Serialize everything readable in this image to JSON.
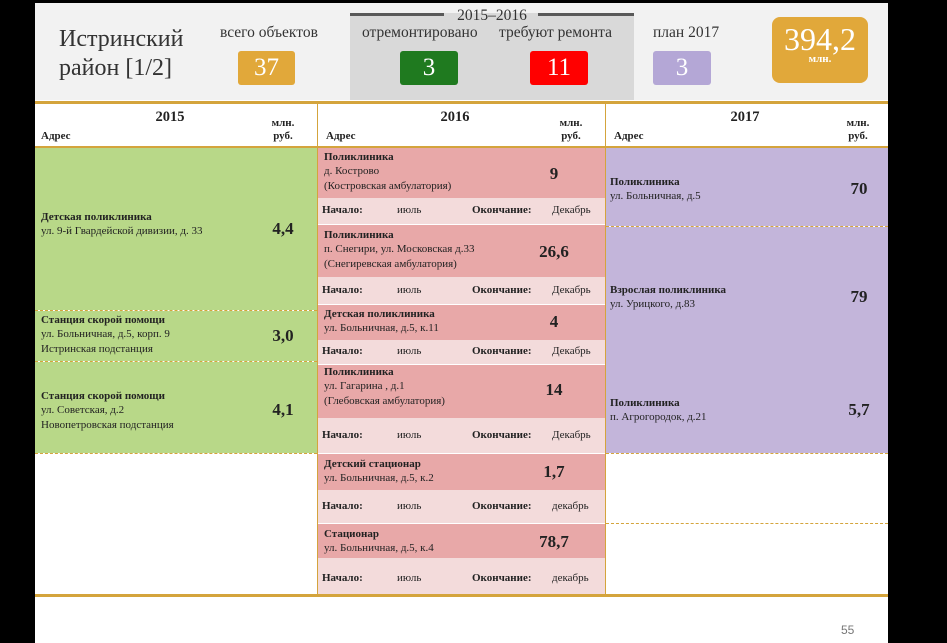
{
  "header": {
    "title_line1": "Истринский",
    "title_line2": "район [1/2]",
    "total_objects_label": "всего объектов",
    "total_objects": "37",
    "period": "2015–2016",
    "repaired_label": "отремонтировано",
    "repaired": "3",
    "need_repair_label": "требуют ремонта",
    "need_repair": "11",
    "plan_label": "план 2017",
    "plan": "3",
    "total_sum": "394,2",
    "total_sum_unit": "млн."
  },
  "colors": {
    "orange": "#e1a83a",
    "green_box": "#1f7a1f",
    "red_box": "#ff0000",
    "purple_box": "#b4a7d6",
    "green_cell": "#b8d888",
    "red_cell": "#e8a8a8",
    "pink_cell": "#f3dbdb",
    "purple_cell": "#c3b5da"
  },
  "table": {
    "columns": [
      {
        "year": "2015",
        "address_label": "Адрес",
        "unit_line1": "млн.",
        "unit_line2": "руб."
      },
      {
        "year": "2016",
        "address_label": "Адрес",
        "unit_line1": "млн.",
        "unit_line2": "руб."
      },
      {
        "year": "2017",
        "address_label": "Адрес",
        "unit_line1": "млн.",
        "unit_line2": "руб."
      }
    ],
    "start_label": "Начало:",
    "end_label": "Окончание:",
    "items_2015": [
      {
        "name": "Детская поликлиника",
        "line1": "ул. 9-й Гвардейской дивизии, д. 33",
        "value": "4,4"
      },
      {
        "name": "Станция скорой помощи",
        "line1": "ул. Больничная, д.5, корп. 9",
        "line2": "Истринская подстанция",
        "value": "3,0"
      },
      {
        "name": "Станция скорой помощи",
        "line1": "ул. Советская, д.2",
        "line2": "Новопетровская подстанция",
        "value": "4,1"
      }
    ],
    "items_2016": [
      {
        "name": "Поликлиника",
        "line1": "д. Кострово",
        "line2": "(Костровская амбулатория)",
        "value": "9",
        "start": "июль",
        "end": "Декабрь"
      },
      {
        "name": "Поликлиника",
        "line1": "п. Снегири, ул. Московская д.33",
        "line2": "(Снегиревская амбулатория)",
        "value": "26,6",
        "start": "июль",
        "end": "Декабрь"
      },
      {
        "name": "Детская поликлиника",
        "line1": "ул. Больничная, д.5, к.11",
        "value": "4",
        "start": "июль",
        "end": "Декабрь"
      },
      {
        "name": "Поликлиника",
        "line1": "ул. Гагарина , д.1",
        "line2": "(Глебовская амбулатория)",
        "value": "14",
        "start": "июль",
        "end": "Декабрь"
      },
      {
        "name": "Детский стационар",
        "line1": "ул. Больничная, д.5, к.2",
        "value": "1,7",
        "start": "июль",
        "end": "декабрь"
      },
      {
        "name": "Стационар",
        "line1": "ул. Больничная, д.5, к.4",
        "value": "78,7",
        "start": "июль",
        "end": "декабрь"
      }
    ],
    "items_2017": [
      {
        "name": "Поликлиника",
        "line1": "ул. Больничная, д.5",
        "value": "70"
      },
      {
        "name": "Взрослая поликлиника",
        "line1": "ул. Урицкого, д.83",
        "value": "79"
      },
      {
        "name": "Поликлиника",
        "line1": "п. Агрогородок, д.21",
        "value": "5,7"
      }
    ]
  },
  "page_number": "55"
}
